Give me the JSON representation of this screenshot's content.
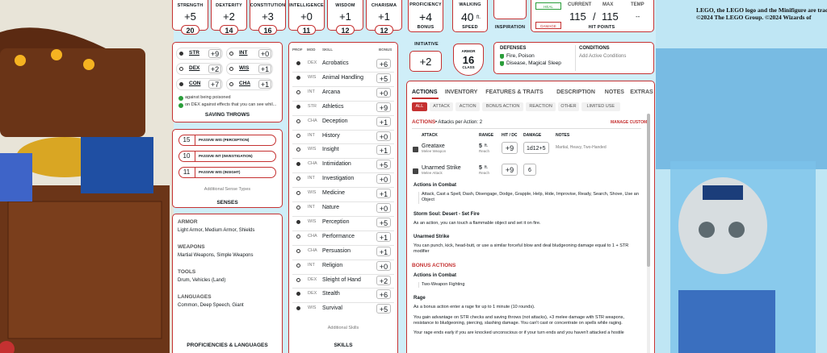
{
  "trademark": [
    "LEGO, the LEGO logo and the Minifigure are trademarks",
    "©2024 The LEGO Group. ©2024 Wizards of"
  ],
  "abilities": [
    {
      "name": "STRENGTH",
      "mod": "+5",
      "score": "20"
    },
    {
      "name": "DEXTERITY",
      "mod": "+2",
      "score": "14"
    },
    {
      "name": "CONSTITUTION",
      "mod": "+3",
      "score": "16"
    },
    {
      "name": "INTELLIGENCE",
      "mod": "+0",
      "score": "11"
    },
    {
      "name": "WISDOM",
      "mod": "+1",
      "score": "12"
    },
    {
      "name": "CHARISMA",
      "mod": "+1",
      "score": "12"
    }
  ],
  "proficiency": {
    "label": "PROFICIENCY",
    "value": "+4",
    "sub": "BONUS"
  },
  "speed": {
    "label": "WALKING",
    "value": "40",
    "unit": "ft.",
    "sub": "SPEED"
  },
  "inspiration": {
    "label": "INSPIRATION"
  },
  "hit_points": {
    "heal": "HEAL",
    "damage": "DAMAGE",
    "current_label": "CURRENT",
    "max_label": "MAX",
    "temp_label": "TEMP",
    "current": "115",
    "slash": "/",
    "max": "115",
    "temp": "--",
    "title": "HIT POINTS"
  },
  "saving_throws": {
    "title": "SAVING THROWS",
    "items": [
      {
        "ability": "STR",
        "mod": "+9",
        "proficient": true
      },
      {
        "ability": "INT",
        "mod": "+0",
        "proficient": false
      },
      {
        "ability": "DEX",
        "mod": "+2",
        "proficient": false
      },
      {
        "ability": "WIS",
        "mod": "+1",
        "proficient": false
      },
      {
        "ability": "CON",
        "mod": "+7",
        "proficient": true
      },
      {
        "ability": "CHA",
        "mod": "+1",
        "proficient": false
      }
    ],
    "notes": [
      "against being poisoned",
      "on DEX against effects that you can see whil..."
    ]
  },
  "senses": {
    "title": "SENSES",
    "items": [
      {
        "value": "15",
        "label": "PASSIVE WIS (PERCEPTION)"
      },
      {
        "value": "10",
        "label": "PASSIVE INT (INVESTIGATION)"
      },
      {
        "value": "11",
        "label": "PASSIVE WIS (INSIGHT)"
      }
    ],
    "additional": "Additional Sense Types"
  },
  "proficiencies": {
    "title": "PROFICIENCIES & LANGUAGES",
    "groups": [
      {
        "heading": "ARMOR",
        "text": "Light Armor, Medium Armor, Shields"
      },
      {
        "heading": "WEAPONS",
        "text": "Martial Weapons, Simple Weapons"
      },
      {
        "heading": "TOOLS",
        "text": "Drum, Vehicles (Land)"
      },
      {
        "heading": "LANGUAGES",
        "text": "Common, Deep Speech, Giant"
      }
    ]
  },
  "skills": {
    "title": "SKILLS",
    "headers": [
      "PROF",
      "MOD",
      "SKILL",
      "BONUS"
    ],
    "additional": "Additional Skills",
    "rows": [
      {
        "mod": "DEX",
        "skill": "Acrobatics",
        "bonus": "+6",
        "proficient": true
      },
      {
        "mod": "WIS",
        "skill": "Animal Handling",
        "bonus": "+5",
        "proficient": true
      },
      {
        "mod": "INT",
        "skill": "Arcana",
        "bonus": "+0",
        "proficient": false
      },
      {
        "mod": "STR",
        "skill": "Athletics",
        "bonus": "+9",
        "proficient": true
      },
      {
        "mod": "CHA",
        "skill": "Deception",
        "bonus": "+1",
        "proficient": false
      },
      {
        "mod": "INT",
        "skill": "History",
        "bonus": "+0",
        "proficient": false
      },
      {
        "mod": "WIS",
        "skill": "Insight",
        "bonus": "+1",
        "proficient": false
      },
      {
        "mod": "CHA",
        "skill": "Intimidation",
        "bonus": "+5",
        "proficient": true
      },
      {
        "mod": "INT",
        "skill": "Investigation",
        "bonus": "+0",
        "proficient": false
      },
      {
        "mod": "WIS",
        "skill": "Medicine",
        "bonus": "+1",
        "proficient": false
      },
      {
        "mod": "INT",
        "skill": "Nature",
        "bonus": "+0",
        "proficient": false
      },
      {
        "mod": "WIS",
        "skill": "Perception",
        "bonus": "+5",
        "proficient": true
      },
      {
        "mod": "CHA",
        "skill": "Performance",
        "bonus": "+1",
        "proficient": false
      },
      {
        "mod": "CHA",
        "skill": "Persuasion",
        "bonus": "+1",
        "proficient": false
      },
      {
        "mod": "INT",
        "skill": "Religion",
        "bonus": "+0",
        "proficient": false
      },
      {
        "mod": "DEX",
        "skill": "Sleight of Hand",
        "bonus": "+2",
        "proficient": false
      },
      {
        "mod": "DEX",
        "skill": "Stealth",
        "bonus": "+6",
        "proficient": true
      },
      {
        "mod": "WIS",
        "skill": "Survival",
        "bonus": "+5",
        "proficient": true
      }
    ]
  },
  "initiative": {
    "label": "INITIATIVE",
    "value": "+2"
  },
  "armor": {
    "top": "ARMOR",
    "value": "16",
    "bottom": "CLASS"
  },
  "defenses": {
    "title": "DEFENSES",
    "items": [
      "Fire, Poison",
      "Disease, Magical Sleep"
    ]
  },
  "conditions": {
    "title": "CONDITIONS",
    "text": "Add Active Conditions"
  },
  "actions": {
    "tabs": [
      "ACTIONS",
      "INVENTORY",
      "FEATURES & TRAITS",
      "DESCRIPTION",
      "NOTES",
      "EXTRAS"
    ],
    "filters": [
      "ALL",
      "ATTACK",
      "ACTION",
      "BONUS ACTION",
      "REACTION",
      "OTHER",
      "LIMITED USE"
    ],
    "heading": "ACTIONS",
    "attacks_per_action": "• Attacks per Action: 2",
    "manage": "MANAGE CUSTOM",
    "columns": [
      "ATTACK",
      "RANGE",
      "HIT / DC",
      "DAMAGE",
      "NOTES"
    ],
    "attacks": [
      {
        "name": "Greataxe",
        "type": "Melee Weapon",
        "range": "5",
        "range_unit": "ft.",
        "range_sub": "Reach",
        "hit": "+9",
        "damage": "1d12+5",
        "notes": "Martial, Heavy, Two-Handed"
      },
      {
        "name": "Unarmed Strike",
        "type": "Melee Attack",
        "range": "5",
        "range_unit": "ft.",
        "range_sub": "Reach",
        "hit": "+9",
        "damage": "6",
        "notes": ""
      }
    ],
    "blocks": [
      {
        "title": "Actions in Combat",
        "text": "Attack, Cast a Spell, Dash, Disengage, Dodge, Grapple, Help, Hide, Improvise, Ready, Search, Shove, Use an Object",
        "boxed": true
      },
      {
        "title": "Storm Soul: Desert - Set Fire",
        "text": "As an action, you can touch a flammable object and set it on fire.",
        "boxed": false
      },
      {
        "title": "Unarmed Strike",
        "text": "You can punch, kick, head-butt, or use a similar forceful blow and deal bludgeoning damage equal to 1 + STR modifier",
        "boxed": false
      }
    ],
    "bonus_heading": "BONUS ACTIONS",
    "bonus_blocks": [
      {
        "title": "Actions in Combat",
        "text": "Two-Weapon Fighting",
        "boxed": true
      },
      {
        "title": "Rage",
        "text": "As a bonus action enter a rage for up to 1 minute (10 rounds).",
        "boxed": false
      }
    ],
    "rage_lines": [
      "You gain advantage on STR checks and saving throws (not attacks), +3 melee damage with STR weapons, resistance to bludgeoning, piercing, slashing damage. You can't cast or concentrate on spells while raging.",
      "Your rage ends early if you are knocked unconscious or if your turn ends and you haven't attacked a hostile"
    ]
  }
}
